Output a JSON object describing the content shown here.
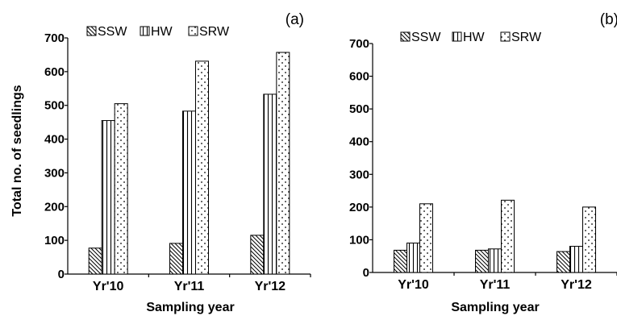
{
  "chart_data": [
    {
      "type": "bar",
      "panel_label": "(a)",
      "categories": [
        "Yr'10",
        "Yr'11",
        "Yr'12"
      ],
      "series": [
        {
          "name": "SSW",
          "values": [
            77,
            91,
            115
          ],
          "pattern": "diagonal-hatch"
        },
        {
          "name": "HW",
          "values": [
            455,
            483,
            533
          ],
          "pattern": "vertical-lines"
        },
        {
          "name": "SRW",
          "values": [
            505,
            631,
            657
          ],
          "pattern": "dots"
        }
      ],
      "xlabel": "Sampling year",
      "ylabel": "Total no. of seedlings",
      "ylim": [
        0,
        700
      ],
      "yticks": [
        0,
        100,
        200,
        300,
        400,
        500,
        600,
        700
      ],
      "grid": false,
      "legend_position": "top-left"
    },
    {
      "type": "bar",
      "panel_label": "(b)",
      "categories": [
        "Yr'10",
        "Yr'11",
        "Yr'12"
      ],
      "series": [
        {
          "name": "SSW",
          "values": [
            68,
            68,
            64
          ],
          "pattern": "diagonal-hatch"
        },
        {
          "name": "HW",
          "values": [
            90,
            72,
            80
          ],
          "pattern": "vertical-lines"
        },
        {
          "name": "SRW",
          "values": [
            210,
            221,
            200
          ],
          "pattern": "dots"
        }
      ],
      "xlabel": "Sampling year",
      "ylabel": "",
      "ylim": [
        0,
        700
      ],
      "yticks": [
        0,
        100,
        200,
        300,
        400,
        500,
        600,
        700
      ],
      "grid": false,
      "legend_position": "top-left"
    }
  ]
}
